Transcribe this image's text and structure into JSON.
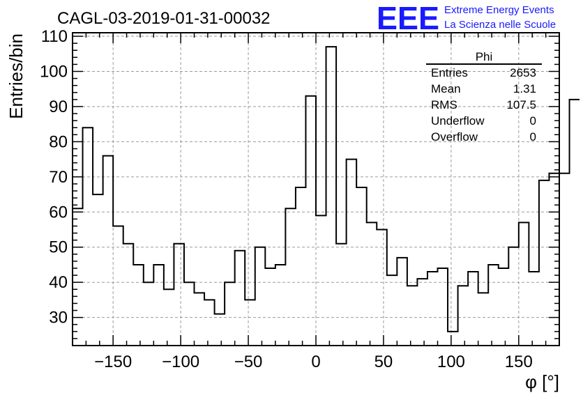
{
  "header": {
    "run_title": "CAGL-03-2019-01-31-00032",
    "logo_text": "EEE",
    "logo_line1": "Extreme Energy Events",
    "logo_line2": "La Scienza nelle Scuole"
  },
  "stats_box": {
    "title": "Phi",
    "rows": [
      {
        "label": "Entries",
        "value": "2653"
      },
      {
        "label": "Mean",
        "value": "1.31"
      },
      {
        "label": "RMS",
        "value": "107.5"
      },
      {
        "label": "Underflow",
        "value": "0"
      },
      {
        "label": "Overflow",
        "value": "0"
      }
    ]
  },
  "colors": {
    "logo": "#1a1aff",
    "histogram": "#000000",
    "grid": "#9a9a9a"
  },
  "chart_data": {
    "type": "histogram",
    "title": "CAGL-03-2019-01-31-00032",
    "xlabel": "φ [°]",
    "ylabel": "Entries/bin",
    "xlim": [
      -180,
      180
    ],
    "ylim": [
      22,
      111
    ],
    "bin_width": 7.5,
    "bin_edges_start": -180,
    "values": [
      61,
      84,
      65,
      76,
      56,
      51,
      45,
      40,
      45,
      38,
      51,
      40,
      37,
      35,
      31,
      40,
      49,
      35,
      50,
      44,
      45,
      61,
      67,
      93,
      59,
      107,
      51,
      75,
      67,
      57,
      55,
      42,
      47,
      39,
      41,
      43,
      44,
      26,
      39,
      43,
      37,
      45,
      44,
      50,
      57,
      43,
      69,
      71,
      71,
      92
    ],
    "x_ticks": [
      -150,
      -100,
      -50,
      0,
      50,
      100,
      150
    ],
    "x_tick_labels": [
      "−150",
      "−100",
      "−50",
      "0",
      "50",
      "100",
      "150"
    ],
    "y_ticks": [
      30,
      40,
      50,
      60,
      70,
      80,
      90,
      100,
      110
    ],
    "y_tick_labels": [
      "30",
      "40",
      "50",
      "60",
      "70",
      "80",
      "90",
      "100",
      "110"
    ],
    "grid": true
  }
}
